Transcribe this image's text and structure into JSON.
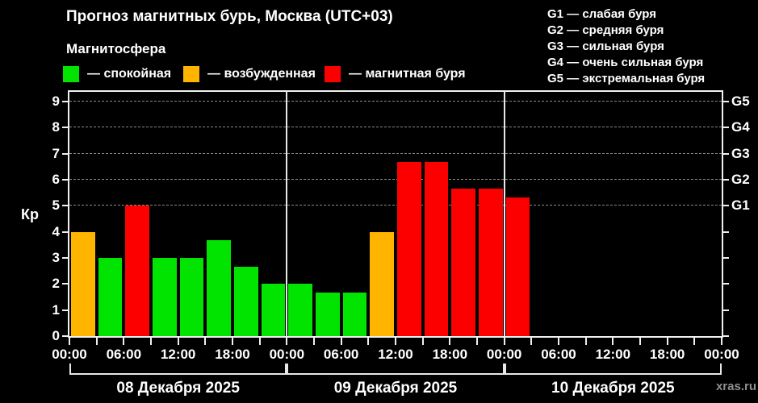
{
  "title": "Прогноз магнитных бурь, Москва (UTC+03)",
  "subtitle": "Магнитосфера",
  "legend": [
    {
      "key": "quiet",
      "label": "— спокойная",
      "color": "#00e400"
    },
    {
      "key": "excited",
      "label": "— возбужденная",
      "color": "#ffb400"
    },
    {
      "key": "storm",
      "label": "— магнитная буря",
      "color": "#fc0000"
    }
  ],
  "g_legend": [
    "G1 — слабая буря",
    "G2 — средняя буря",
    "G3 — сильная буря",
    "G4 — очень сильная буря",
    "G5 — экстремальная буря"
  ],
  "watermark": "xras.ru",
  "chart_data": {
    "type": "bar",
    "title": "Прогноз магнитных бурь, Москва (UTC+03)",
    "ylabel": "Кр",
    "ylim": [
      0,
      9.4
    ],
    "y_ticks": [
      0,
      1,
      2,
      3,
      4,
      5,
      6,
      7,
      8,
      9
    ],
    "gridline_kp": [
      5,
      6,
      7,
      8,
      9
    ],
    "grid": "dashed horizontal at G-levels",
    "right_axis": [
      {
        "label": "G1",
        "kp": 5
      },
      {
        "label": "G2",
        "kp": 6
      },
      {
        "label": "G3",
        "kp": 7
      },
      {
        "label": "G4",
        "kp": 8
      },
      {
        "label": "G5",
        "kp": 9
      }
    ],
    "x_tick_labels": [
      "00:00",
      "06:00",
      "12:00",
      "18:00",
      "00:00",
      "06:00",
      "12:00",
      "18:00",
      "00:00",
      "06:00",
      "12:00",
      "18:00",
      "00:00"
    ],
    "days": [
      {
        "label": "08 Декабря 2025"
      },
      {
        "label": "09 Декабря 2025"
      },
      {
        "label": "10 Декабря 2025"
      }
    ],
    "slots_per_day": 8,
    "hours_per_slot": 3,
    "bars": [
      {
        "day": 0,
        "slot": 0,
        "kp": 4.0,
        "level": "excited"
      },
      {
        "day": 0,
        "slot": 1,
        "kp": 3.0,
        "level": "quiet"
      },
      {
        "day": 0,
        "slot": 2,
        "kp": 5.0,
        "level": "storm"
      },
      {
        "day": 0,
        "slot": 3,
        "kp": 3.0,
        "level": "quiet"
      },
      {
        "day": 0,
        "slot": 4,
        "kp": 3.0,
        "level": "quiet"
      },
      {
        "day": 0,
        "slot": 5,
        "kp": 3.67,
        "level": "quiet"
      },
      {
        "day": 0,
        "slot": 6,
        "kp": 2.67,
        "level": "quiet"
      },
      {
        "day": 0,
        "slot": 7,
        "kp": 2.0,
        "level": "quiet"
      },
      {
        "day": 1,
        "slot": 0,
        "kp": 2.0,
        "level": "quiet"
      },
      {
        "day": 1,
        "slot": 1,
        "kp": 1.67,
        "level": "quiet"
      },
      {
        "day": 1,
        "slot": 2,
        "kp": 1.67,
        "level": "quiet"
      },
      {
        "day": 1,
        "slot": 3,
        "kp": 4.0,
        "level": "excited"
      },
      {
        "day": 1,
        "slot": 4,
        "kp": 6.67,
        "level": "storm"
      },
      {
        "day": 1,
        "slot": 5,
        "kp": 6.67,
        "level": "storm"
      },
      {
        "day": 1,
        "slot": 6,
        "kp": 5.67,
        "level": "storm"
      },
      {
        "day": 1,
        "slot": 7,
        "kp": 5.67,
        "level": "storm"
      },
      {
        "day": 2,
        "slot": 0,
        "kp": 5.33,
        "level": "storm"
      }
    ]
  }
}
